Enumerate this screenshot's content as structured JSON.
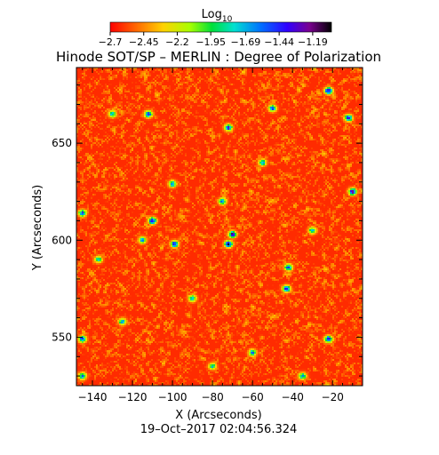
{
  "chart_data": {
    "type": "heatmap",
    "title": "Hinode SOT/SP – MERLIN : Degree of Polarization",
    "xlabel": "X (Arcseconds)",
    "ylabel": "Y (Arcseconds)",
    "footer": "19–Oct–2017 02:04:56.324",
    "xlim": [
      -148,
      -5
    ],
    "ylim": [
      525,
      689
    ],
    "xticks": [
      -140,
      -120,
      -100,
      -80,
      -60,
      -40,
      -20
    ],
    "yticks": [
      550,
      600,
      650
    ],
    "colorbar": {
      "label_main": "Log",
      "label_sub": "10",
      "ticks": [
        -2.7,
        -2.45,
        -2.2,
        -1.95,
        -1.69,
        -1.44,
        -1.19
      ],
      "range": [
        -2.7,
        -1.05
      ],
      "colormap": "rainbow red-yellow-green-cyan-blue-purple-black"
    },
    "field": {
      "background_level": -2.62,
      "noise_amplitude": 0.28,
      "patches": [
        {
          "x": -112,
          "y": 665,
          "value": -1.3
        },
        {
          "x": -100,
          "y": 629,
          "value": -1.55
        },
        {
          "x": -110,
          "y": 610,
          "value": -1.15
        },
        {
          "x": -115,
          "y": 600,
          "value": -1.6
        },
        {
          "x": -99,
          "y": 598,
          "value": -1.25
        },
        {
          "x": -72,
          "y": 598,
          "value": -1.1
        },
        {
          "x": -70,
          "y": 603,
          "value": -1.2
        },
        {
          "x": -75,
          "y": 620,
          "value": -1.45
        },
        {
          "x": -72,
          "y": 658,
          "value": -1.3
        },
        {
          "x": -50,
          "y": 668,
          "value": -1.45
        },
        {
          "x": -22,
          "y": 677,
          "value": -1.05
        },
        {
          "x": -12,
          "y": 663,
          "value": -1.25
        },
        {
          "x": -10,
          "y": 625,
          "value": -1.1
        },
        {
          "x": -145,
          "y": 614,
          "value": -1.4
        },
        {
          "x": -42,
          "y": 586,
          "value": -1.4
        },
        {
          "x": -43,
          "y": 575,
          "value": -1.3
        },
        {
          "x": -90,
          "y": 570,
          "value": -1.55
        },
        {
          "x": -145,
          "y": 549,
          "value": -1.35
        },
        {
          "x": -125,
          "y": 558,
          "value": -1.6
        },
        {
          "x": -60,
          "y": 542,
          "value": -1.55
        },
        {
          "x": -22,
          "y": 549,
          "value": -1.15
        },
        {
          "x": -35,
          "y": 530,
          "value": -1.55
        },
        {
          "x": -130,
          "y": 665,
          "value": -1.65
        },
        {
          "x": -55,
          "y": 640,
          "value": -1.6
        },
        {
          "x": -30,
          "y": 605,
          "value": -1.65
        },
        {
          "x": -137,
          "y": 590,
          "value": -1.7
        },
        {
          "x": -80,
          "y": 535,
          "value": -1.7
        },
        {
          "x": -145,
          "y": 530,
          "value": -1.5
        }
      ]
    }
  }
}
